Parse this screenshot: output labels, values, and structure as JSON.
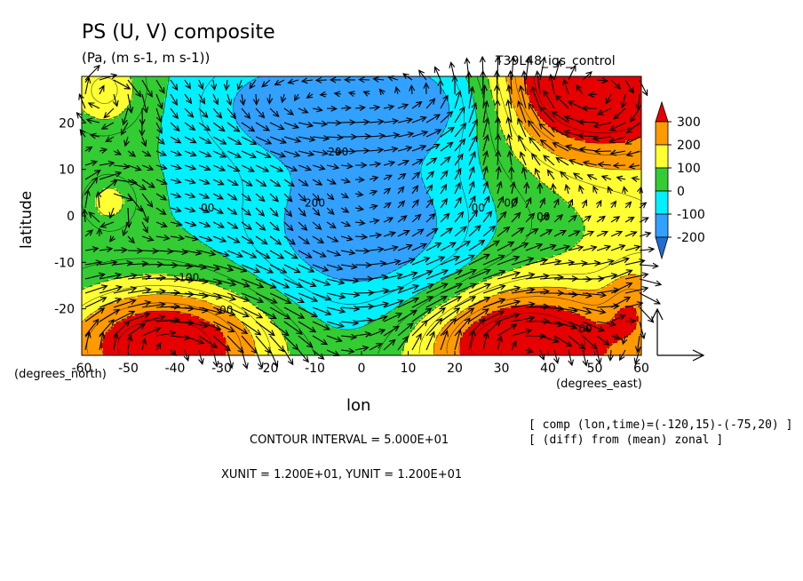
{
  "header": {
    "title": "PS (U, V) composite",
    "units": "(Pa, (m s-1, m s-1))",
    "run": "T39L48_igs_control"
  },
  "axes": {
    "xlabel": "lon",
    "ylabel": "latitude",
    "x_unit_label": "(degrees_east)",
    "y_unit_label": "(degrees_north)",
    "x_ticks": [
      "-60",
      "-50",
      "-40",
      "-30",
      "-20",
      "-10",
      "0",
      "10",
      "20",
      "30",
      "40",
      "50",
      "60"
    ],
    "y_ticks": [
      "20",
      "10",
      "0",
      "-10",
      "-20"
    ]
  },
  "notes": {
    "line1": "[ comp (lon,time)=(-120,15)-(-75,20) ]",
    "line2": "[ (diff) from (mean) zonal ]",
    "contour_interval": "CONTOUR INTERVAL = 5.000E+01",
    "vector_units": "XUNIT = 1.200E+01, YUNIT = 1.200E+01"
  },
  "colorbar": {
    "labels": [
      "300",
      "200",
      "100",
      "0",
      "-100",
      "-200"
    ],
    "colors": [
      "#e60000",
      "#ff9a00",
      "#ffff33",
      "#33cc33",
      "#00f0ff",
      "#32a0ff",
      "#1e6ed2"
    ]
  },
  "chart_data": {
    "type": "heatmap",
    "title": "PS (U, V) composite",
    "xlabel": "lon",
    "ylabel": "latitude",
    "xlim": [
      -60,
      60
    ],
    "ylim": [
      -30,
      30
    ],
    "x_ticks": [
      -60,
      -50,
      -40,
      -30,
      -20,
      -10,
      0,
      10,
      20,
      30,
      40,
      50,
      60
    ],
    "y_ticks": [
      -20,
      -10,
      0,
      10,
      20
    ],
    "colorbar_levels": [
      -200,
      -100,
      0,
      100,
      200,
      300
    ],
    "contour_labels": [
      {
        "text": "200",
        "lon": -5,
        "lat": 13
      },
      {
        "text": "200",
        "lon": -10,
        "lat": 2
      },
      {
        "text": "00",
        "lon": -33,
        "lat": 1
      },
      {
        "text": "00",
        "lon": 25,
        "lat": 1
      },
      {
        "text": "00",
        "lon": 32,
        "lat": 2
      },
      {
        "text": "00",
        "lon": 39,
        "lat": -1
      },
      {
        "text": "100",
        "lon": -37,
        "lat": -14
      },
      {
        "text": "00",
        "lon": -29,
        "lat": -21
      },
      {
        "text": "00",
        "lon": 48,
        "lat": -25
      }
    ],
    "features": [
      {
        "kind": "high",
        "lon": -42,
        "lat": -27,
        "value": 300
      },
      {
        "kind": "high",
        "lon": 32,
        "lat": -27,
        "value": 300
      },
      {
        "kind": "high",
        "lon": 50,
        "lat": 27,
        "value": 300
      },
      {
        "kind": "low",
        "lon": 0,
        "lat": -2,
        "value": -200
      },
      {
        "kind": "low",
        "lon": -15,
        "lat": 25,
        "value": -200
      },
      {
        "kind": "low",
        "lon": 15,
        "lat": 26,
        "value": -200
      }
    ],
    "vector_reference": {
      "xunit": 12.0,
      "yunit": 12.0
    }
  }
}
